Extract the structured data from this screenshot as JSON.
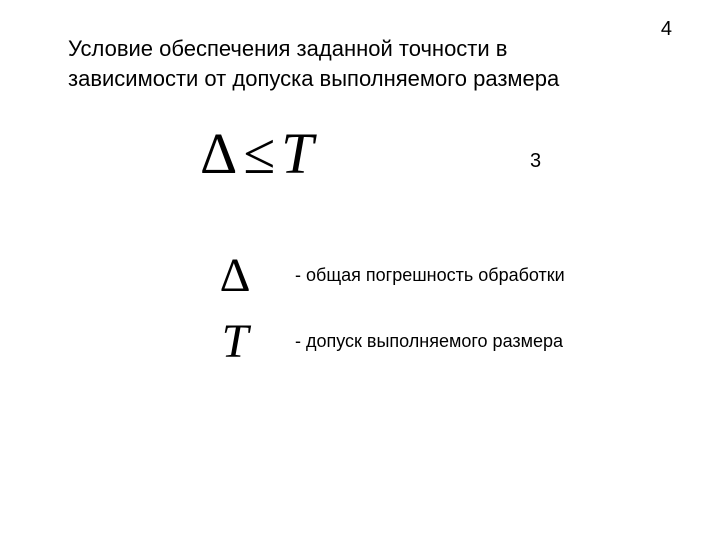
{
  "page_number": "4",
  "title": "Условие обеспечения заданной точности в зависимости от допуска выполняемого размера",
  "formula": {
    "delta": "Δ",
    "le": "≤",
    "t": "T",
    "eq_number": "3"
  },
  "legend": {
    "delta_symbol": "Δ",
    "delta_text": "- общая погрешность обработки",
    "t_symbol": "T",
    "t_text": "- допуск выполняемого размера"
  }
}
